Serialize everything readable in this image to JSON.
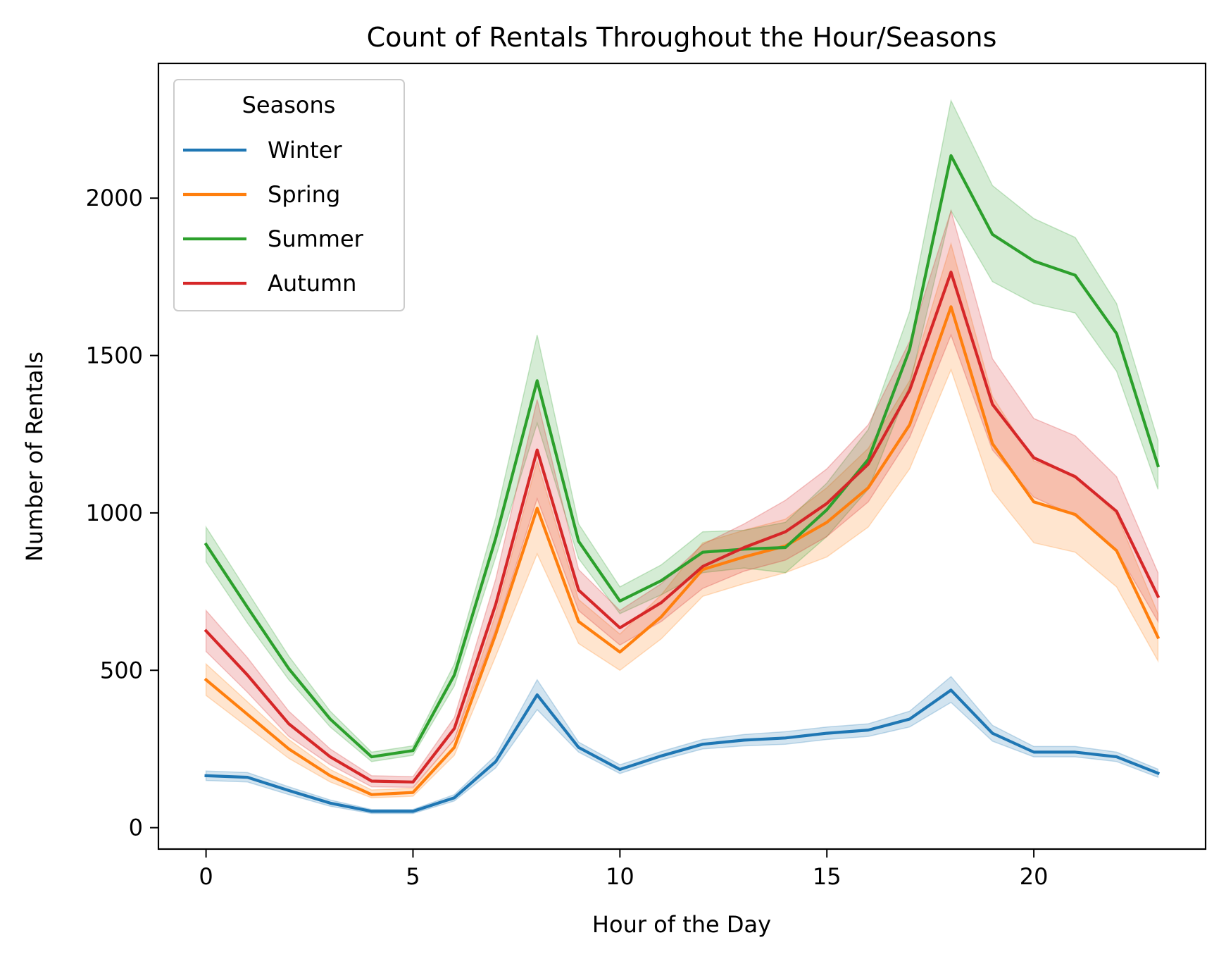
{
  "chart_data": {
    "type": "line",
    "title": "Count of Rentals Throughout the Hour/Seasons",
    "xlabel": "Hour of the Day",
    "ylabel": "Number of Rentals",
    "xlim": [
      -1.15,
      24.15
    ],
    "ylim": [
      -68,
      2428
    ],
    "xticks": [
      0,
      5,
      10,
      15,
      20
    ],
    "yticks": [
      0,
      500,
      1000,
      1500,
      2000
    ],
    "grid": false,
    "legend": {
      "title": "Seasons",
      "placement": "top-left"
    },
    "x": [
      0,
      1,
      2,
      3,
      4,
      5,
      6,
      7,
      8,
      9,
      10,
      11,
      12,
      13,
      14,
      15,
      16,
      17,
      18,
      19,
      20,
      21,
      22,
      23
    ],
    "series": [
      {
        "name": "Winter",
        "color": "#1f77b4",
        "values": [
          165,
          160,
          118,
          78,
          52,
          52,
          95,
          210,
          422,
          255,
          185,
          228,
          265,
          278,
          285,
          300,
          310,
          345,
          437,
          300,
          240,
          240,
          225,
          173
        ],
        "ci_low": [
          150,
          145,
          105,
          68,
          45,
          45,
          85,
          190,
          375,
          240,
          172,
          215,
          250,
          260,
          265,
          280,
          290,
          320,
          398,
          275,
          225,
          225,
          210,
          160
        ],
        "ci_high": [
          180,
          175,
          130,
          88,
          58,
          58,
          105,
          230,
          470,
          272,
          200,
          242,
          280,
          296,
          305,
          320,
          330,
          370,
          480,
          325,
          258,
          258,
          240,
          186
        ]
      },
      {
        "name": "Spring",
        "color": "#ff7f0e",
        "values": [
          470,
          360,
          250,
          165,
          105,
          112,
          255,
          615,
          1015,
          655,
          558,
          670,
          820,
          860,
          895,
          970,
          1080,
          1280,
          1655,
          1220,
          1035,
          995,
          880,
          605
        ],
        "ci_low": [
          420,
          320,
          220,
          145,
          95,
          100,
          230,
          545,
          870,
          585,
          500,
          600,
          735,
          775,
          810,
          860,
          955,
          1140,
          1455,
          1070,
          905,
          875,
          765,
          530
        ],
        "ci_high": [
          520,
          400,
          280,
          185,
          120,
          125,
          280,
          680,
          1165,
          725,
          615,
          740,
          905,
          945,
          980,
          1080,
          1205,
          1420,
          1855,
          1370,
          1165,
          1120,
          995,
          680
        ]
      },
      {
        "name": "Summer",
        "color": "#2ca02c",
        "values": [
          900,
          700,
          505,
          345,
          225,
          245,
          485,
          920,
          1420,
          910,
          720,
          785,
          875,
          885,
          890,
          1010,
          1170,
          1520,
          2135,
          1885,
          1800,
          1755,
          1570,
          1150
        ],
        "ci_low": [
          845,
          650,
          470,
          320,
          210,
          230,
          450,
          860,
          1285,
          855,
          680,
          740,
          810,
          825,
          810,
          925,
          1075,
          1405,
          1960,
          1735,
          1665,
          1635,
          1450,
          1075
        ],
        "ci_high": [
          955,
          750,
          545,
          370,
          240,
          260,
          520,
          985,
          1565,
          965,
          765,
          835,
          940,
          945,
          970,
          1095,
          1265,
          1640,
          2310,
          2040,
          1935,
          1875,
          1665,
          1230
        ]
      },
      {
        "name": "Autumn",
        "color": "#d62728",
        "values": [
          625,
          485,
          330,
          225,
          148,
          145,
          315,
          710,
          1200,
          755,
          635,
          715,
          830,
          890,
          940,
          1030,
          1155,
          1390,
          1765,
          1345,
          1175,
          1115,
          1005,
          735
        ],
        "ci_low": [
          560,
          430,
          290,
          200,
          130,
          128,
          280,
          630,
          1045,
          690,
          580,
          655,
          760,
          815,
          850,
          925,
          1035,
          1240,
          1565,
          1200,
          1050,
          990,
          880,
          655
        ],
        "ci_high": [
          690,
          540,
          370,
          250,
          165,
          162,
          350,
          790,
          1360,
          820,
          690,
          775,
          900,
          965,
          1040,
          1140,
          1280,
          1545,
          1960,
          1490,
          1300,
          1245,
          1115,
          810
        ]
      }
    ]
  }
}
